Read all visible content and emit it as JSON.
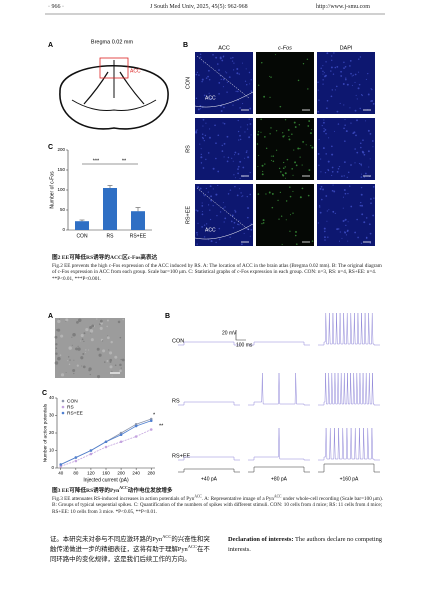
{
  "header": {
    "page": "· 966 ·",
    "journal": "J South Med Univ, 2025, 45(5): 962-968",
    "url": "http://www.j-smu.com"
  },
  "figure2": {
    "panel_labels": [
      "A",
      "B",
      "C"
    ],
    "panel_a": {
      "bregma": "Bregma 0.02 mm",
      "region": "ACC"
    },
    "panel_b": {
      "columns": [
        "ACC",
        "c-Fos",
        "DAPI"
      ],
      "rows": [
        "CON",
        "RS",
        "RS+EE"
      ],
      "region_label": "ACC"
    },
    "panel_c": {
      "type": "bar",
      "y_label": "Number of c-Fos",
      "categories": [
        "CON",
        "RS",
        "RS+EE"
      ],
      "values": [
        22,
        105,
        47
      ],
      "errors": [
        3,
        6,
        9
      ],
      "color": "#2f6fc4",
      "ylim": [
        0,
        200
      ],
      "yticks": [
        0,
        50,
        100,
        150,
        200
      ],
      "significance": [
        "***",
        "**"
      ]
    },
    "caption": {
      "title_zh": "图2 EE可降低RS诱导的ACC区c-Fos高表达",
      "text_en": "Fig.2 EE prevents the high c-Fos expression of the ACC induced by RS. A: The location of ACC in the brain atlas (Bregma 0.02 mm). B: The original diagram of c-Fos expression in ACC from each group. Scale bar=100 μm. C: Statistical graphs of c-Fos expression in each group. CON: n=3, RS: n=4, RS+EE: n=4. **P<0.01, ***P<0.001."
    }
  },
  "figure3": {
    "panel_labels": [
      "A",
      "B",
      "C"
    ],
    "panel_b": {
      "rows": [
        "CON",
        "RS",
        "RS+EE"
      ],
      "scale_voltage": "20 mV",
      "scale_time": "100 ms",
      "currents": [
        "+40 pA",
        "+80 pA",
        "+160 pA"
      ]
    },
    "panel_c": {
      "type": "line",
      "x_label": "Injected current (pA)",
      "y_label": "Number of action potentials",
      "x": [
        40,
        80,
        120,
        160,
        200,
        240,
        280
      ],
      "series": [
        {
          "name": "CON",
          "color": "#8e97ad",
          "values": [
            2,
            6,
            10,
            15,
            20,
            25,
            28
          ]
        },
        {
          "name": "RS",
          "color": "#c3a3df",
          "values": [
            1,
            4,
            8,
            12,
            15,
            18,
            22
          ]
        },
        {
          "name": "RS+EE",
          "color": "#4f7fd0",
          "values": [
            2,
            6,
            10,
            15,
            19,
            24,
            27
          ]
        }
      ],
      "xlim": [
        30,
        290
      ],
      "ylim": [
        0,
        40
      ],
      "xticks": [
        40,
        80,
        120,
        160,
        200,
        240,
        280
      ],
      "yticks": [
        0,
        10,
        20,
        30,
        40
      ],
      "significance": [
        "*",
        "**"
      ]
    },
    "caption": {
      "title_zh": [
        "图3 EE可降低RS诱导的Pyn",
        "ACC",
        "动作电位发放增多"
      ],
      "text_en": [
        "Fig.3 EE attenuates RS-induced increases in action potentials of Pyn",
        "ACC",
        ". A: Representative image of a Pyn",
        "ACC",
        " under whole-cell recording (Scale bar=100 μm). B: Groups of typical sequential spikes. C: Quantification of the numbers of spikes with different stimuli. CON: 10 cells from 4 mice; RS: 11 cells from 4 mice; RS+EE: 10 cells from 3 mice. *P<0.05, **P<0.01."
      ]
    }
  },
  "body": {
    "text_zh": [
      "证。本研究未对参与不同应激环路的Pyn",
      "ACC",
      "的兴奋性和突触传递做进一步的精细表征，这将有助于理解Pyn",
      "ACC",
      "在不同环路中的变化规律，这是我们后续工作的方向。"
    ],
    "declaration_label": "Declaration of interests:",
    "declaration_text": "The authors declare no competing interests."
  }
}
